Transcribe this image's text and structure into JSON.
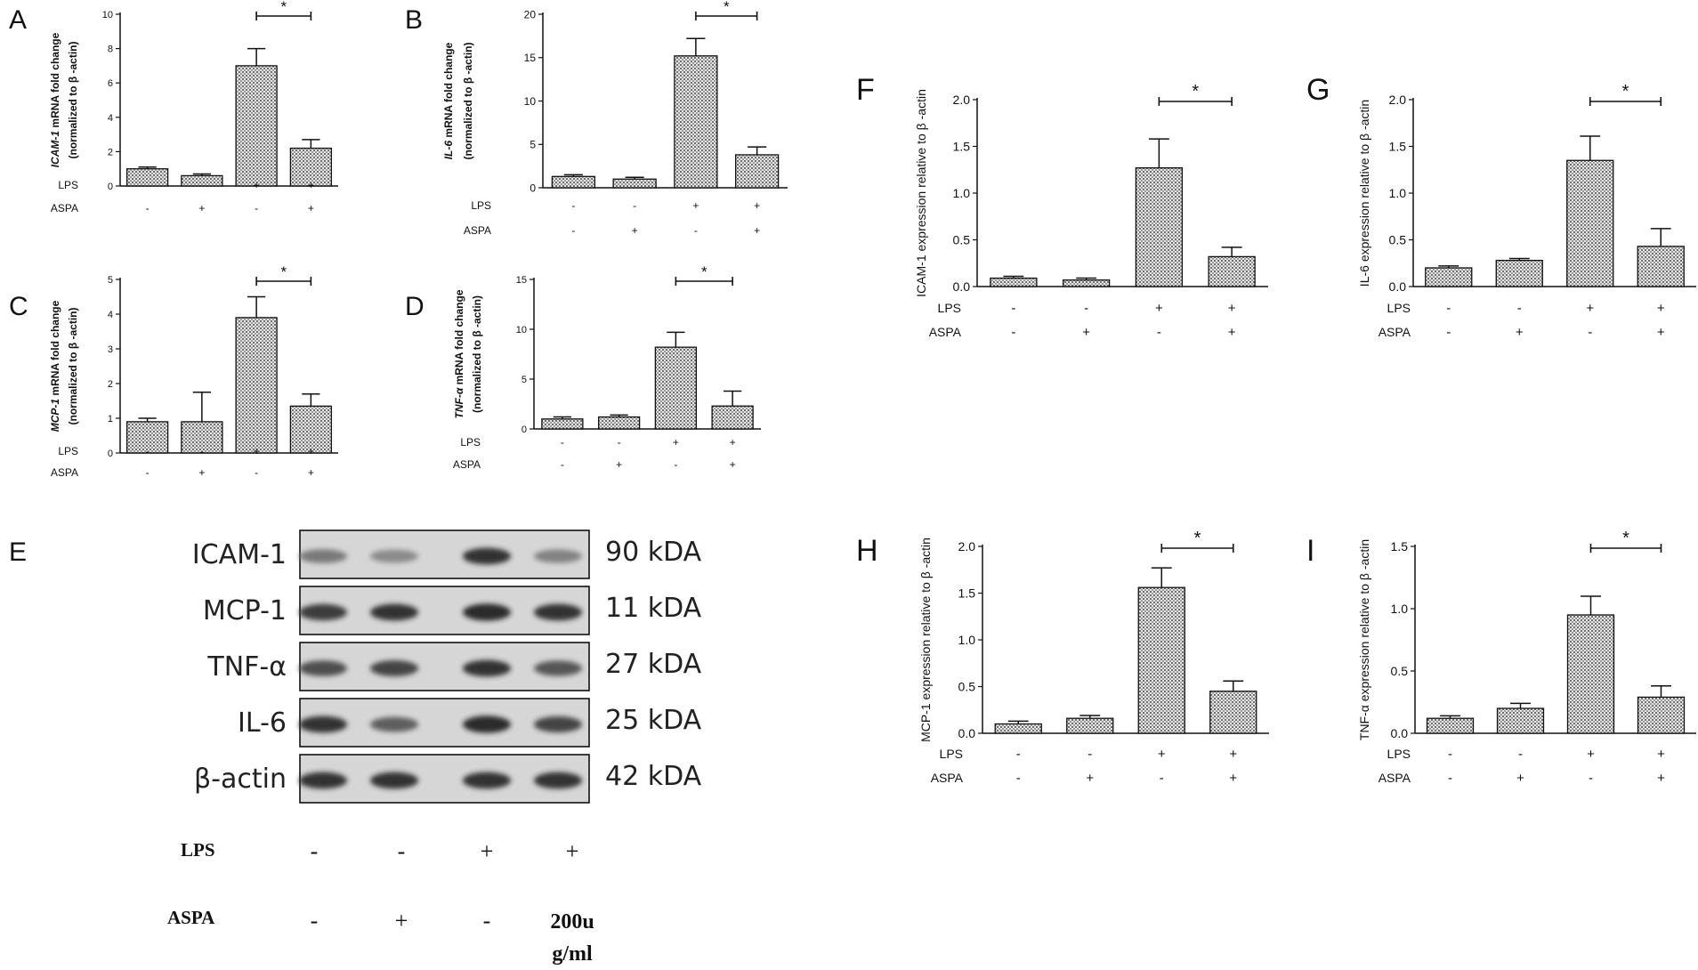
{
  "cond_rows": {
    "lps": [
      "-",
      "-",
      "+",
      "+"
    ],
    "aspa": [
      "-",
      "+",
      "-",
      "+"
    ]
  },
  "chart_data": [
    {
      "id": "A",
      "type": "bar",
      "panel_label": "A",
      "ylabel_italic": "ICAM-1",
      "ylabel_rest": " mRNA fold change",
      "ylabel2": "(normalized to β -actin)",
      "ylim": [
        0,
        10
      ],
      "yticks": [
        0,
        2,
        4,
        6,
        8,
        10
      ],
      "values": [
        1.0,
        0.6,
        7.0,
        2.2
      ],
      "errors": [
        0.1,
        0.1,
        1.0,
        0.5
      ],
      "sig": {
        "from": 2,
        "to": 3,
        "label": "*"
      },
      "row_labels": [
        "LPS",
        "ASPA"
      ]
    },
    {
      "id": "B",
      "type": "bar",
      "panel_label": "B",
      "ylabel_italic": "IL-6",
      "ylabel_rest": " mRNA fold change",
      "ylabel2": "(normalized to β -actin)",
      "ylim": [
        0,
        20
      ],
      "yticks": [
        0,
        5,
        10,
        15,
        20
      ],
      "values": [
        1.3,
        1.0,
        15.2,
        3.8
      ],
      "errors": [
        0.2,
        0.2,
        2.0,
        0.9
      ],
      "sig": {
        "from": 2,
        "to": 3,
        "label": "*"
      },
      "row_labels": [
        "LPS",
        "ASPA"
      ]
    },
    {
      "id": "C",
      "type": "bar",
      "panel_label": "C",
      "ylabel_italic": "MCP-1",
      "ylabel_rest": " mRNA fold change",
      "ylabel2": "(normalized to β -actin)",
      "ylim": [
        0,
        5
      ],
      "yticks": [
        0,
        1,
        2,
        3,
        4,
        5
      ],
      "values": [
        0.9,
        0.9,
        3.9,
        1.35
      ],
      "errors": [
        0.1,
        0.85,
        0.6,
        0.35
      ],
      "sig": {
        "from": 2,
        "to": 3,
        "label": "*"
      },
      "row_labels": [
        "LPS",
        "ASPA"
      ]
    },
    {
      "id": "D",
      "type": "bar",
      "panel_label": "D",
      "ylabel_italic": "TNF-α",
      "ylabel_rest": " mRNA fold change",
      "ylabel2": "(normalized to β -actin)",
      "ylim": [
        0,
        15
      ],
      "yticks": [
        0,
        5,
        10,
        15
      ],
      "values": [
        1.0,
        1.2,
        8.2,
        2.3
      ],
      "errors": [
        0.2,
        0.2,
        1.5,
        1.5
      ],
      "sig": {
        "from": 2,
        "to": 3,
        "label": "*"
      },
      "row_labels": [
        "LPS",
        "ASPA"
      ]
    },
    {
      "id": "F",
      "type": "bar",
      "panel_label": "F",
      "ylabel_italic": "",
      "ylabel_rest": "ICAM-1 expression relative to β  -actin",
      "ylabel2": "",
      "ylim": [
        0,
        2.0
      ],
      "yticks": [
        "0.0",
        "0.5",
        "1.0",
        "1.5",
        "2.0"
      ],
      "values": [
        0.09,
        0.07,
        1.27,
        0.32
      ],
      "errors": [
        0.02,
        0.02,
        0.31,
        0.1
      ],
      "sig": {
        "from": 2,
        "to": 3,
        "label": "*"
      },
      "row_labels": [
        "LPS",
        "ASPA"
      ]
    },
    {
      "id": "G",
      "type": "bar",
      "panel_label": "G",
      "ylabel_italic": "",
      "ylabel_rest": "IL-6 expression relative to β  -actin",
      "ylabel2": "",
      "ylim": [
        0,
        2.0
      ],
      "yticks": [
        "0.0",
        "0.5",
        "1.0",
        "1.5",
        "2.0"
      ],
      "values": [
        0.2,
        0.28,
        1.35,
        0.43
      ],
      "errors": [
        0.02,
        0.02,
        0.26,
        0.19
      ],
      "sig": {
        "from": 2,
        "to": 3,
        "label": "*"
      },
      "row_labels": [
        "LPS",
        "ASPA"
      ]
    },
    {
      "id": "H",
      "type": "bar",
      "panel_label": "H",
      "ylabel_italic": "",
      "ylabel_rest": "MCP-1 expression relative to β  -actin",
      "ylabel2": "",
      "ylim": [
        0,
        2.0
      ],
      "yticks": [
        "0.0",
        "0.5",
        "1.0",
        "1.5",
        "2.0"
      ],
      "values": [
        0.1,
        0.16,
        1.56,
        0.45
      ],
      "errors": [
        0.03,
        0.03,
        0.21,
        0.11
      ],
      "sig": {
        "from": 2,
        "to": 3,
        "label": "*"
      },
      "row_labels": [
        "LPS",
        "ASPA"
      ]
    },
    {
      "id": "I",
      "type": "bar",
      "panel_label": "I",
      "ylabel_italic": "",
      "ylabel_rest": "TNF-α  expression relative to β  -actin",
      "ylabel2": "",
      "ylim": [
        0,
        1.5
      ],
      "yticks": [
        "0.0",
        "0.5",
        "1.0",
        "1.5"
      ],
      "values": [
        0.12,
        0.2,
        0.95,
        0.29
      ],
      "errors": [
        0.02,
        0.04,
        0.15,
        0.09
      ],
      "sig": {
        "from": 2,
        "to": 3,
        "label": "*"
      },
      "row_labels": [
        "LPS",
        "ASPA"
      ]
    }
  ],
  "western_blot": {
    "panel_label": "E",
    "proteins": [
      {
        "name": "ICAM-1",
        "size": "90 kDA",
        "intensity": [
          0.45,
          0.35,
          0.85,
          0.4
        ]
      },
      {
        "name": "MCP-1",
        "size": "11 kDA",
        "intensity": [
          0.8,
          0.85,
          0.9,
          0.85
        ]
      },
      {
        "name": "TNF-α",
        "size": "27 kDA",
        "intensity": [
          0.7,
          0.75,
          0.85,
          0.65
        ]
      },
      {
        "name": "IL-6",
        "size": "25 kDA",
        "intensity": [
          0.85,
          0.6,
          0.9,
          0.75
        ]
      },
      {
        "name": "β-actin",
        "size": "42 kDA",
        "intensity": [
          0.85,
          0.85,
          0.85,
          0.85
        ]
      }
    ],
    "row_labels": [
      "LPS",
      "ASPA"
    ],
    "lps": [
      "-",
      "-",
      "+",
      "+"
    ],
    "aspa": [
      "-",
      "+",
      "-",
      "200u\ng/ml"
    ]
  },
  "colors": {
    "bar_fill": "#c9c9c9",
    "ink": "#111111",
    "blot_bg": "#d4d4d4",
    "band": "#1a1a1a"
  }
}
